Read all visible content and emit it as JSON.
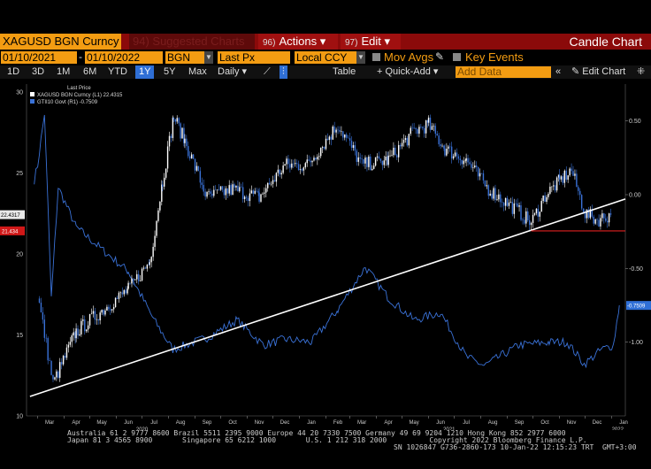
{
  "toolbar": {
    "ticker": "XAGUSD BGN Curncy",
    "suggested": "94) Suggested Charts",
    "actions_num": "96)",
    "actions": "Actions",
    "edit_num": "97)",
    "edit": "Edit",
    "title": "Candle Chart"
  },
  "params": {
    "start_date": "01/10/2021",
    "end_date": "01/10/2022",
    "source": "BGN",
    "field": "Last Px",
    "currency": "Local CCY",
    "mov_avgs": "Mov Avgs",
    "key_events": "Key Events"
  },
  "ranges": [
    "1D",
    "3D",
    "1M",
    "6M",
    "YTD",
    "1Y",
    "5Y",
    "Max"
  ],
  "selected_range": "1Y",
  "period": "Daily",
  "table": "Table",
  "quick_add": "+ Quick-Add",
  "add_data": "Add Data",
  "edit_chart": "Edit Chart",
  "chart_data": {
    "type": "line",
    "legend_header": "Last Price",
    "series": [
      {
        "name": "XAGUSD BGN Curncy (L1) 22.4315",
        "axis": "left",
        "color": "#ffffff",
        "last": 22.4315,
        "x": [
          "2020-03-01",
          "2020-03-19",
          "2020-04-15",
          "2020-05-15",
          "2020-06-15",
          "2020-07-10",
          "2020-07-25",
          "2020-08-07",
          "2020-08-20",
          "2020-09-15",
          "2020-10-15",
          "2020-11-15",
          "2020-12-15",
          "2021-01-10",
          "2021-02-01",
          "2021-02-15",
          "2021-03-15",
          "2021-04-15",
          "2021-05-15",
          "2021-06-01",
          "2021-06-20",
          "2021-07-15",
          "2021-08-10",
          "2021-09-15",
          "2021-09-29",
          "2021-10-15",
          "2021-11-01",
          "2021-11-15",
          "2021-12-01",
          "2021-12-15",
          "2021-12-31"
        ],
        "values": [
          17.5,
          12.0,
          15.2,
          16.5,
          17.8,
          19.5,
          24.5,
          28.5,
          27.0,
          23.5,
          24.0,
          23.5,
          25.5,
          25.5,
          27.0,
          28.0,
          25.5,
          25.8,
          27.6,
          28.0,
          26.5,
          25.8,
          24.0,
          22.6,
          21.9,
          23.6,
          24.5,
          25.2,
          22.5,
          22.1,
          22.43
        ]
      },
      {
        "name": "GTII10 Govt (R1) -0.7509",
        "axis": "right",
        "color": "#3a72d8",
        "last": -0.7509,
        "x": [
          "2020-02-26",
          "2020-03-01",
          "2020-03-09",
          "2020-03-17",
          "2020-03-25",
          "2020-04-15",
          "2020-05-15",
          "2020-06-15",
          "2020-07-15",
          "2020-08-06",
          "2020-09-15",
          "2020-10-20",
          "2020-11-20",
          "2020-12-15",
          "2021-01-15",
          "2021-02-15",
          "2021-03-19",
          "2021-04-15",
          "2021-05-15",
          "2021-06-15",
          "2021-07-15",
          "2021-08-05",
          "2021-09-15",
          "2021-10-20",
          "2021-11-10",
          "2021-11-30",
          "2021-12-20",
          "2022-01-03",
          "2022-01-10"
        ],
        "values": [
          0.1,
          0.2,
          0.55,
          -0.7,
          0.05,
          -0.22,
          -0.37,
          -0.52,
          -0.85,
          -1.05,
          -0.97,
          -0.85,
          -1.02,
          -0.98,
          -1.0,
          -0.78,
          -0.49,
          -0.7,
          -0.85,
          -0.8,
          -1.1,
          -1.16,
          -1.02,
          -1.0,
          -1.0,
          -1.15,
          -1.05,
          -1.02,
          -0.75
        ]
      }
    ],
    "left_axis": {
      "ticks": [
        10,
        15,
        20,
        25,
        30
      ],
      "range": [
        10,
        30.5
      ]
    },
    "right_axis": {
      "ticks": [
        "0.50",
        "0.00",
        "-0.50",
        "-1.00"
      ],
      "range": [
        -1.5,
        0.75
      ]
    },
    "x_axis": {
      "range": [
        "2020-02-17",
        "2022-01-17"
      ],
      "months": [
        "Mar",
        "Apr",
        "May",
        "Jun",
        "Jul",
        "Aug",
        "Sep",
        "Oct",
        "Nov",
        "Dec",
        "Jan",
        "Feb",
        "Mar",
        "Apr",
        "May",
        "Jun",
        "Jul",
        "Aug",
        "Sep",
        "Oct",
        "Nov",
        "Dec",
        "Jan"
      ],
      "years": [
        "2020",
        "2021",
        "2022"
      ]
    },
    "trendline": {
      "from": [
        "2020-02-21",
        11.2
      ],
      "to": [
        "2022-01-17",
        23.4
      ],
      "color": "#ffffff"
    },
    "support_line": {
      "from": [
        "2021-09-29",
        21.43
      ],
      "to": [
        "2022-01-17",
        21.43
      ],
      "color": "#e02020"
    },
    "price_labels": {
      "last": "22.4317",
      "support": "21.434",
      "right_last": "-0.7509"
    }
  },
  "footer": {
    "line1": "Australia 61 2 9777 8600 Brazil 5511 2395 9000 Europe 44 20 7330 7500 Germany 49 69 9204 1210 Hong Kong 852 2977 6000",
    "line2": "Japan 81 3 4565 8900       Singapore 65 6212 1000       U.S. 1 212 318 2000          Copyright 2022 Bloomberg Finance L.P.",
    "line3": "SN 1026847 G736-2860-173 10-Jan-22 12:15:23 TRT  GMT+3:00"
  }
}
